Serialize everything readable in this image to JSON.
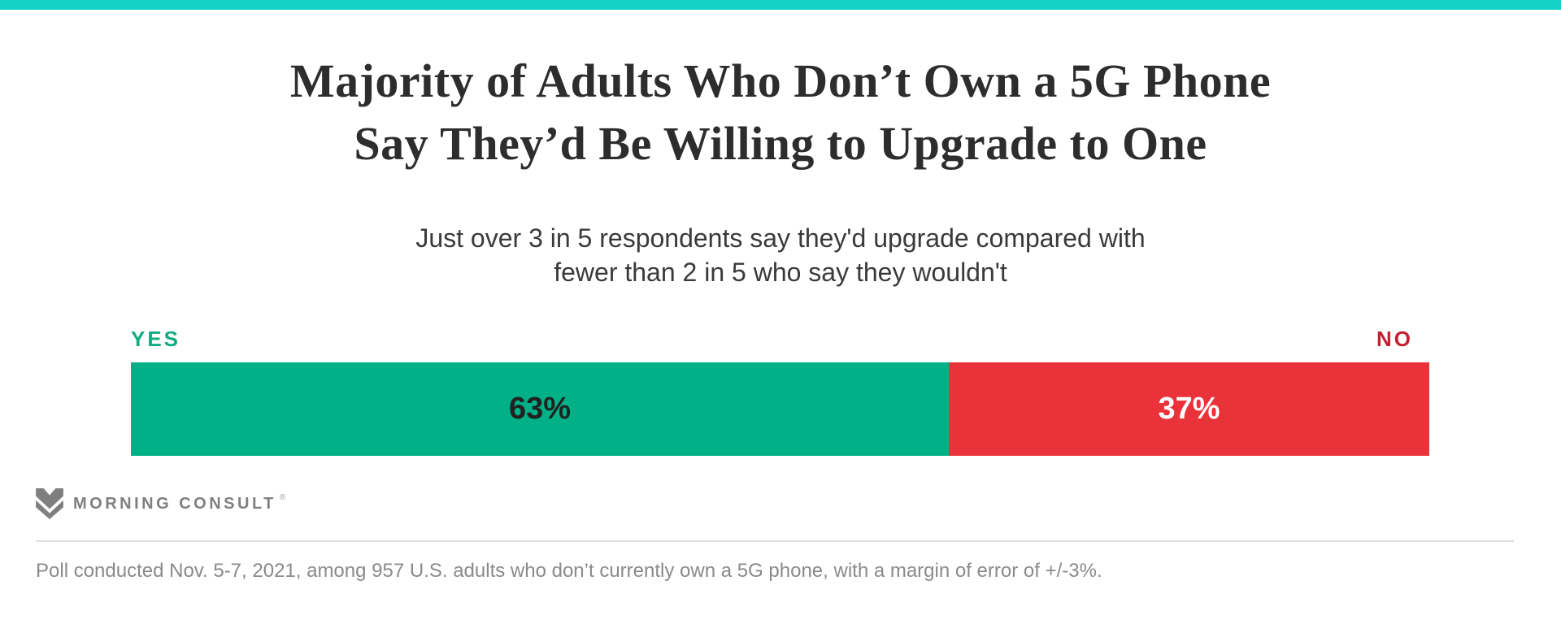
{
  "top_bar": {
    "color": "#13D3C6"
  },
  "title": {
    "line1": "Majority of Adults Who Don’t Own a 5G Phone",
    "line2": "Say They’d Be Willing to Upgrade to One"
  },
  "subtitle": {
    "line1": "Just over 3 in 5 respondents say they'd upgrade compared with",
    "line2": "fewer than 2 in 5 who say they wouldn't"
  },
  "chart_data": {
    "type": "bar",
    "orientation": "horizontal-stacked",
    "title": "Majority of Adults Who Don’t Own a 5G Phone Say They’d Be Willing to Upgrade to One",
    "subtitle": "Just over 3 in 5 respondents say they'd upgrade compared with fewer than 2 in 5 who say they wouldn't",
    "categories": [
      "Yes",
      "No"
    ],
    "values": [
      63,
      37
    ],
    "series": [
      {
        "name": "YES",
        "value": 63,
        "label": "63%",
        "color": "#00B187",
        "label_color": "#212121"
      },
      {
        "name": "NO",
        "value": 37,
        "label": "37%",
        "color": "#E93239",
        "label_color": "#FFFFFF"
      }
    ],
    "legend": {
      "position": "above-bar-ends",
      "yes_label": "YES",
      "no_label": "NO",
      "yes_color": "#0FAC82",
      "no_color": "#C32031"
    },
    "xlim": [
      0,
      100
    ],
    "grid": false
  },
  "branding": {
    "logo_icon": "morning-consult-m-icon",
    "logo_text": "MORNING CONSULT",
    "registered_mark": "®",
    "color": "#7f7f7f"
  },
  "footer": {
    "text": "Poll conducted Nov. 5-7, 2021, among 957 U.S. adults who don’t currently own a 5G phone, with a margin of error of +/-3%."
  }
}
